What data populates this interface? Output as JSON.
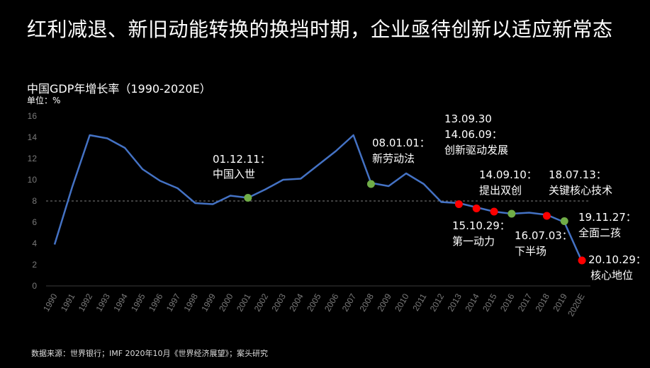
{
  "headline": "红利减退、新旧动能转换的换挡时期，企业亟待创新以适应新常态",
  "source": "数据来源：世界银行；IMF 2020年10月《世界经济展望》；案头研究",
  "colors": {
    "line": "#4472c4",
    "green": "#70ad47",
    "red": "#ff0000",
    "ref_line": "#7f7f7f"
  },
  "chart_data": {
    "type": "line",
    "title": "中国GDP年增长率（1990-2020E）",
    "unit": "单位：%",
    "ylim": [
      0,
      16
    ],
    "yticks": [
      0,
      2,
      4,
      6,
      8,
      10,
      12,
      14,
      16
    ],
    "categories": [
      "1990",
      "1991",
      "1992",
      "1993",
      "1994",
      "1995",
      "1996",
      "1997",
      "1998",
      "1999",
      "2000",
      "2001",
      "2002",
      "2003",
      "2004",
      "2005",
      "2006",
      "2007",
      "2008",
      "2009",
      "2010",
      "2011",
      "2012",
      "2013",
      "2014",
      "2015",
      "2016",
      "2017",
      "2018",
      "2019",
      "2020E"
    ],
    "values": [
      3.9,
      9.3,
      14.2,
      13.9,
      13.0,
      11.0,
      9.9,
      9.2,
      7.8,
      7.7,
      8.5,
      8.3,
      9.1,
      10.0,
      10.1,
      11.4,
      12.7,
      14.2,
      9.7,
      9.4,
      10.6,
      9.6,
      7.9,
      7.8,
      7.4,
      7.0,
      6.8,
      6.9,
      6.7,
      6.0,
      2.3
    ],
    "reference_line": 8,
    "markers": [
      {
        "x": "2001",
        "y": 8.3,
        "color": "green",
        "label_lines": [
          "01.12.11：",
          "中国入世"
        ]
      },
      {
        "x": "2008",
        "y": 9.6,
        "color": "green",
        "label_lines": [
          "08.01.01：",
          "新劳动法"
        ]
      },
      {
        "x": "2013",
        "y": 7.7,
        "color": "red",
        "label_lines": [
          "15.10.29：",
          "第一动力"
        ]
      },
      {
        "x": "2014",
        "y": 7.3,
        "color": "red",
        "label_lines": [
          "13.09.30",
          "14.06.09：",
          "创新驱动发展"
        ]
      },
      {
        "x": "2015",
        "y": 7.0,
        "color": "red",
        "label_lines": []
      },
      {
        "x": "2016",
        "y": 6.8,
        "color": "green",
        "label_lines": [
          "14.09.10：",
          "提出双创"
        ]
      },
      {
        "x": "2018",
        "y": 6.6,
        "color": "red",
        "label_lines": [
          "16.07.03：",
          "下半场"
        ]
      },
      {
        "x": "2019",
        "y": 6.1,
        "color": "green",
        "label_lines": [
          "18.07.13：",
          "关键核心技术"
        ]
      },
      {
        "x": "2020E",
        "y": 2.4,
        "color": "red",
        "label_lines": [
          "19.11.27：",
          "全面二孩",
          "20.10.29：",
          "核心地位"
        ]
      }
    ]
  }
}
